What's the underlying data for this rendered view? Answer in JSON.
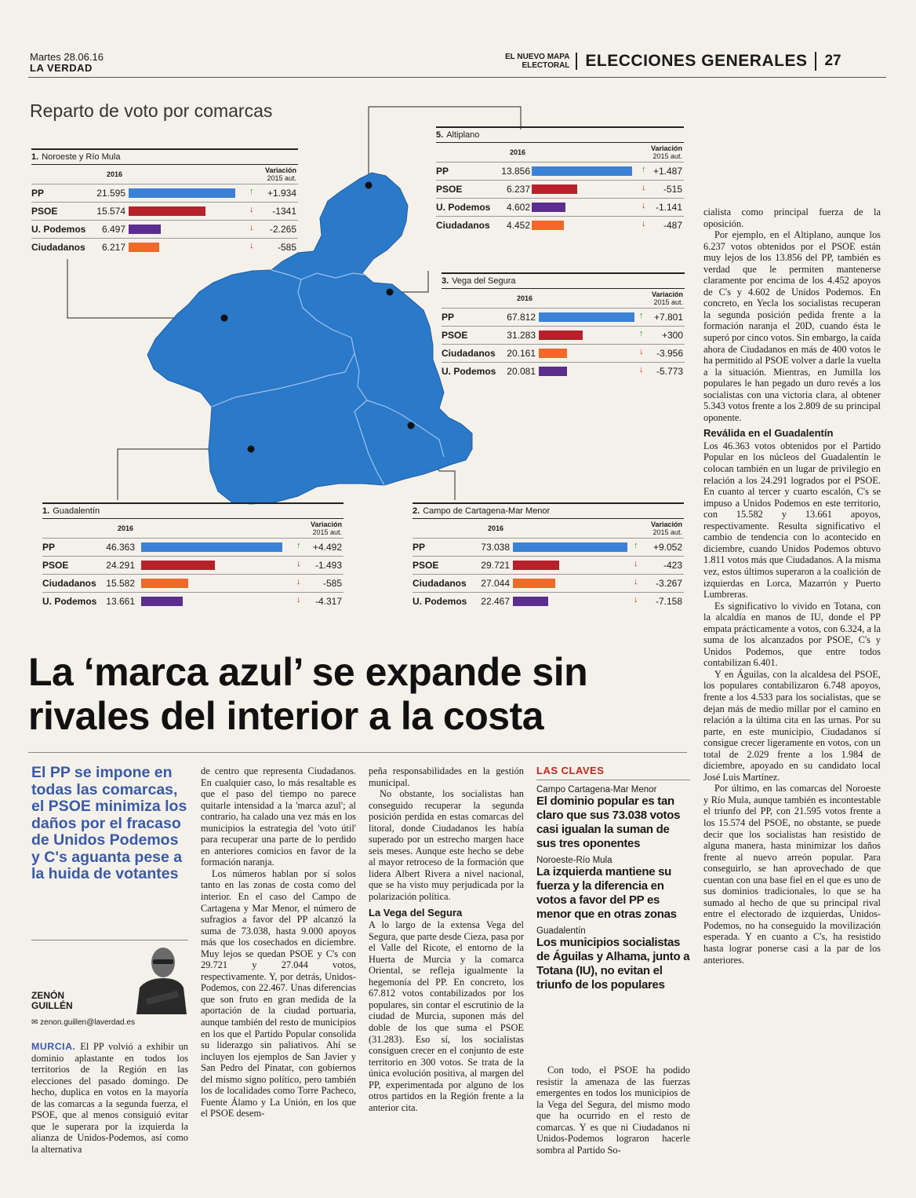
{
  "header": {
    "date": "Martes 28.06.16",
    "paper": "LA VERDAD",
    "tag_line1": "EL NUEVO MAPA",
    "tag_line2": "ELECTORAL",
    "section": "ELECCIONES GENERALES",
    "page": "27"
  },
  "graphic": {
    "title": "Reparto de voto por comarcas",
    "year_label": "2016",
    "var_label": "Variación",
    "var_sub": "2015 aut.",
    "colors": {
      "PP": "#3b82d6",
      "PSOE": "#b8212a",
      "U. Podemos": "#5b2d8e",
      "Ciudadanos": "#ee6a2a",
      "map": "#2b79c9"
    },
    "boxes": [
      {
        "num": "1.",
        "name": "Noroeste y Río Mula",
        "rows": [
          {
            "party": "PP",
            "votes": "21.595",
            "dir": "up",
            "var": "+1.934"
          },
          {
            "party": "PSOE",
            "votes": "15.574",
            "dir": "down",
            "var": "-1341"
          },
          {
            "party": "U. Podemos",
            "votes": "6.497",
            "dir": "down",
            "var": "-2.265"
          },
          {
            "party": "Ciudadanos",
            "votes": "6.217",
            "dir": "down",
            "var": "-585"
          }
        ]
      },
      {
        "num": "5.",
        "name": "Altiplano",
        "rows": [
          {
            "party": "PP",
            "votes": "13.856",
            "dir": "up",
            "var": "+1.487"
          },
          {
            "party": "PSOE",
            "votes": "6.237",
            "dir": "down",
            "var": "-515"
          },
          {
            "party": "U. Podemos",
            "votes": "4.602",
            "dir": "down",
            "var": "-1.141"
          },
          {
            "party": "Ciudadanos",
            "votes": "4.452",
            "dir": "down",
            "var": "-487"
          }
        ]
      },
      {
        "num": "3.",
        "name": "Vega del Segura",
        "rows": [
          {
            "party": "PP",
            "votes": "67.812",
            "dir": "up",
            "var": "+7.801"
          },
          {
            "party": "PSOE",
            "votes": "31.283",
            "dir": "up",
            "var": "+300"
          },
          {
            "party": "Ciudadanos",
            "votes": "20.161",
            "dir": "down",
            "var": "-3.956"
          },
          {
            "party": "U. Podemos",
            "votes": "20.081",
            "dir": "down",
            "var": "-5.773"
          }
        ]
      },
      {
        "num": "1.",
        "name": "Guadalentín",
        "rows": [
          {
            "party": "PP",
            "votes": "46.363",
            "dir": "up",
            "var": "+4.492"
          },
          {
            "party": "PSOE",
            "votes": "24.291",
            "dir": "down",
            "var": "-1.493"
          },
          {
            "party": "Ciudadanos",
            "votes": "15.582",
            "dir": "down",
            "var": "-585"
          },
          {
            "party": "U. Podemos",
            "votes": "13.661",
            "dir": "down",
            "var": "-4.317"
          }
        ]
      },
      {
        "num": "2.",
        "name": "Campo de Cartagena-Mar Menor",
        "rows": [
          {
            "party": "PP",
            "votes": "73.038",
            "dir": "up",
            "var": "+9.052"
          },
          {
            "party": "PSOE",
            "votes": "29.721",
            "dir": "down",
            "var": "-423"
          },
          {
            "party": "Ciudadanos",
            "votes": "27.044",
            "dir": "down",
            "var": "-3.267"
          },
          {
            "party": "U. Podemos",
            "votes": "22.467",
            "dir": "down",
            "var": "-7.158"
          }
        ]
      }
    ]
  },
  "article": {
    "headline_line1": "La ‘marca azul’ se expande sin",
    "headline_line2": "rivales del interior a la costa",
    "subhead": "El PP se impone en todas las comarcas, el PSOE minimiza los daños por el fracaso de Unidos Podemos y C's aguanta pese a la huida de votantes",
    "author_first": "ZENÓN",
    "author_last": "GUILLÉN",
    "email": "zenon.guillen@laverdad.es",
    "city": "MURCIA.",
    "col1_p1": "El PP volvió a exhibir un dominio aplastante en todos los territorios de la Región en las elecciones del pasado domingo. De hecho, duplica en votos en la mayoría de las comarcas a la segunda fuerza, el PSOE, que al menos consiguió evitar que le superara por la izquierda la alianza de Unidos-Podemos, así como la alternativa",
    "col2_p1": "de centro que representa Ciudadanos. En cualquier caso, lo más resaltable es que el paso del tiempo no parece quitarle intensidad a la 'marca azul'; al contrario, ha calado una vez más en los municipios la estrategia del 'voto útil' para recuperar una parte de lo perdido en anteriores comicios en favor de la formación naranja.",
    "col2_p2": "Los números hablan por sí solos tanto en las zonas de costa como del interior. En el caso del Campo de Cartagena y Mar Menor, el número de sufragios a favor del PP alcanzó la suma de 73.038, hasta 9.000 apoyos más que los cosechados en diciembre. Muy lejos se quedan PSOE y C's con 29.721 y 27.044 votos, respectivamente. Y, por detrás, Unidos-Podemos, con 22.467. Unas diferencias que son fruto en gran medida de la aportación de la ciudad portuaria, aunque también del resto de municipios en los que el Partido Popular consolida su liderazgo sin paliativos. Ahí se incluyen los ejemplos de San Javier y San Pedro del Pinatar, con gobiernos del mismo signo político, pero también los de localidades como Torre Pacheco, Fuente Álamo y La Unión, en los que el PSOE desem-",
    "col3_p1": "peña responsabilidades en la gestión municipal.",
    "col3_p2": "No obstante, los socialistas han conseguido recuperar la segunda posición perdida en estas comarcas del litoral, donde Ciudadanos les había superado por un estrecho margen hace seis meses. Aunque este hecho se debe al mayor retroceso de la formación que lidera Albert Rivera a nivel nacional, que se ha visto muy perjudicada por la polarización política.",
    "col3_h": "La Vega del Segura",
    "col3_p3": "A lo largo de la extensa Vega del Segura, que parte desde Cieza, pasa por el Valle del Ricote, el entorno de la Huerta de Murcia y la comarca Oriental, se refleja igualmente la hegemonía del PP. En concreto, los 67.812 votos contabilizados por los populares, sin contar el escrutinio de la ciudad de Murcia, suponen más del doble de los que suma el PSOE (31.283). Eso sí, los socialistas consiguen crecer en el conjunto de este territorio en 300 votos. Se trata de la única evolución positiva, al margen del PP, experimentada por alguno de los otros partidos en la Región frente a la anterior cita.",
    "claves_title": "LAS CLAVES",
    "claves": [
      {
        "label": "Campo Cartagena-Mar Menor",
        "text": "El dominio popular es tan claro que sus 73.038 votos casi igualan la suman de sus tres oponentes"
      },
      {
        "label": "Noroeste-Río Mula",
        "text": "La izquierda mantiene su fuerza y la diferencia en votos a favor del PP es menor que en otras zonas"
      },
      {
        "label": "Guadalentín",
        "text": "Los municipios socialistas de Águilas y Alhama, junto a Totana (IU), no evitan el triunfo de los populares"
      }
    ],
    "col4_p1": "Con todo, el PSOE ha podido resistir la amenaza de las fuerzas emergentes en todos los municipios de la Vega del Segura, del mismo modo que ha ocurrido en el resto de comarcas. Y es que ni Ciudadanos ni Unidos-Podemos lograron hacerle sombra al Partido So-",
    "col5_p0": "cialista como principal fuerza de la oposición.",
    "col5_p1": "Por ejemplo, en el Altiplano, aunque los 6.237 votos obtenidos por el PSOE están muy lejos de los 13.856 del PP, también es verdad que le permiten mantenerse claramente por encima de los 4.452 apoyos de C's y 4.602 de Unidos Podemos. En concreto, en Yecla los socialistas recuperan la segunda posición pedida frente a la formación naranja el 20D, cuando ésta le superó por cinco votos. Sin embargo, la caída ahora de Ciudadanos en más de 400 votos le ha permitido al PSOE volver a darle la vuelta a la situación. Mientras, en Jumilla los populares le han pegado un duro revés a los socialistas con una victoria clara, al obtener 5.343 votos frente a los 2.809 de su principal oponente.",
    "col5_h": "Reválida en el Guadalentín",
    "col5_p2": "Los 46.363 votos obtenidos por el Partido Popular en los núcleos del Guadalentín le colocan también en un lugar de privilegio en relación a los 24.291 logrados por el PSOE. En cuanto al tercer y cuarto escalón, C's se impuso a Unidos Podemos en este territorio, con 15.582 y 13.661 apoyos, respectivamente. Resulta significativo el cambio de tendencia con lo acontecido en diciembre, cuando Unidos Podemos obtuvo 1.811 votos más que Ciudadanos. A la misma vez, estos últimos superaron a la coalición de izquierdas en Lorca, Mazarrón y Puerto Lumbreras.",
    "col5_p3": "Es significativo lo vivido en Totana, con la alcaldía en manos de IU, donde el PP empata prácticamente a votos, con 6.324, a la suma de los alcanzados por PSOE, C's y Unidos Podemos, que entre todos contabilizan 6.401.",
    "col5_p4": "Y en Águilas, con la alcaldesa del PSOE, los populares contabilizaron 6.748 apoyos, frente a los 4.533 para los socialistas, que se dejan más de medio millar por el camino en relación a la última cita en las urnas. Por su parte, en este municipio, Ciudadanos sí consigue crecer ligeramente en votos, con un total de 2.029 frente a los 1.984 de diciembre, apoyado en su candidato local José Luis Martínez.",
    "col5_p5": "Por último, en las comarcas del Noroeste y Río Mula, aunque también es incontestable el triunfo del PP, con 21.595 votos frente a los 15.574 del PSOE, no obstante, se puede decir que los socialistas han resistido de alguna manera, hasta minimizar los daños frente al nuevo arreón popular. Para conseguirlo, se han aprovechado de que cuentan con una base fiel en el que es uno de sus dominios tradicionales, lo que se ha sumado al hecho de que su principal rival entre el electorado de izquierdas, Unidos-Podemos, no ha conseguido la movilización esperada. Y en cuanto a C's, ha resistido hasta lograr ponerse casi a la par de los anteriores."
  },
  "chart_data": [
    {
      "type": "bar",
      "title": "1. Noroeste y Río Mula",
      "categories": [
        "PP",
        "PSOE",
        "U. Podemos",
        "Ciudadanos"
      ],
      "series": [
        {
          "name": "2016",
          "values": [
            21595,
            15574,
            6497,
            6217
          ]
        },
        {
          "name": "Variación 2015 aut.",
          "values": [
            1934,
            -1341,
            -2265,
            -585
          ]
        }
      ]
    },
    {
      "type": "bar",
      "title": "5. Altiplano",
      "categories": [
        "PP",
        "PSOE",
        "U. Podemos",
        "Ciudadanos"
      ],
      "series": [
        {
          "name": "2016",
          "values": [
            13856,
            6237,
            4602,
            4452
          ]
        },
        {
          "name": "Variación 2015 aut.",
          "values": [
            1487,
            -515,
            -1141,
            -487
          ]
        }
      ]
    },
    {
      "type": "bar",
      "title": "3. Vega del Segura",
      "categories": [
        "PP",
        "PSOE",
        "Ciudadanos",
        "U. Podemos"
      ],
      "series": [
        {
          "name": "2016",
          "values": [
            67812,
            31283,
            20161,
            20081
          ]
        },
        {
          "name": "Variación 2015 aut.",
          "values": [
            7801,
            300,
            -3956,
            -5773
          ]
        }
      ]
    },
    {
      "type": "bar",
      "title": "1. Guadalentín",
      "categories": [
        "PP",
        "PSOE",
        "Ciudadanos",
        "U. Podemos"
      ],
      "series": [
        {
          "name": "2016",
          "values": [
            46363,
            24291,
            15582,
            13661
          ]
        },
        {
          "name": "Variación 2015 aut.",
          "values": [
            4492,
            -1493,
            -585,
            -4317
          ]
        }
      ]
    },
    {
      "type": "bar",
      "title": "2. Campo de Cartagena-Mar Menor",
      "categories": [
        "PP",
        "PSOE",
        "Ciudadanos",
        "U. Podemos"
      ],
      "series": [
        {
          "name": "2016",
          "values": [
            73038,
            29721,
            27044,
            22467
          ]
        },
        {
          "name": "Variación 2015 aut.",
          "values": [
            9052,
            -423,
            -3267,
            -7158
          ]
        }
      ]
    }
  ]
}
